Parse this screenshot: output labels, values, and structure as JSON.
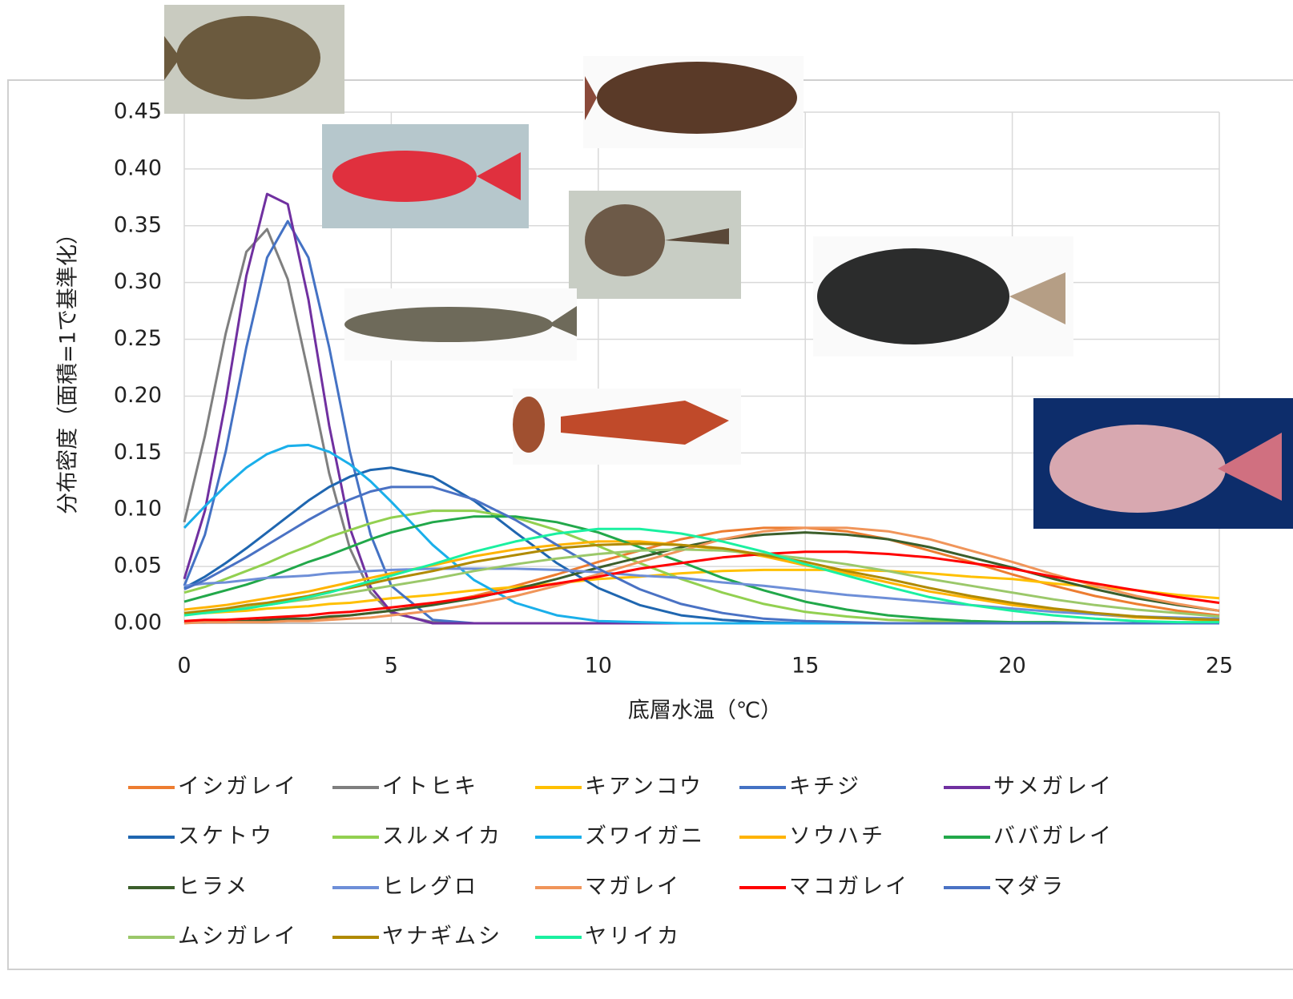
{
  "chart_data": {
    "type": "line",
    "x_label": "底層水温（℃）",
    "y_label": "分布密度（面積=1で基準化）",
    "x": [
      0,
      0.5,
      1,
      1.5,
      2,
      2.5,
      3,
      3.5,
      4,
      4.5,
      5,
      6,
      7,
      8,
      9,
      10,
      11,
      12,
      13,
      14,
      15,
      16,
      17,
      18,
      19,
      20,
      21,
      22,
      23,
      24,
      25
    ],
    "xlim": [
      0,
      25
    ],
    "xticks": [
      0,
      5,
      10,
      15,
      20,
      25
    ],
    "ylim": [
      0,
      0.45
    ],
    "yticks": [
      {
        "value": 0,
        "label": "0.00"
      },
      {
        "value": 0.05,
        "label": "0.05"
      },
      {
        "value": 0.1,
        "label": "0.10"
      },
      {
        "value": 0.15,
        "label": "0.15"
      },
      {
        "value": 0.2,
        "label": "0.20"
      },
      {
        "value": 0.25,
        "label": "0.25"
      },
      {
        "value": 0.3,
        "label": "0.30"
      },
      {
        "value": 0.35,
        "label": "0.35"
      },
      {
        "value": 0.4,
        "label": "0.40"
      },
      {
        "value": 0.45,
        "label": "0.45"
      }
    ],
    "grid": true,
    "legend": "bottom",
    "series": [
      {
        "name": "イシガレイ",
        "color": "#ED7D31",
        "values": [
          0.001,
          0.001,
          0.001,
          0.002,
          0.002,
          0.003,
          0.004,
          0.005,
          0.007,
          0.009,
          0.011,
          0.017,
          0.024,
          0.033,
          0.043,
          0.054,
          0.064,
          0.074,
          0.081,
          0.084,
          0.084,
          0.081,
          0.074,
          0.064,
          0.054,
          0.043,
          0.033,
          0.024,
          0.017,
          0.011,
          0.007
        ]
      },
      {
        "name": "イトヒキ",
        "color": "#7F7F7F",
        "values": [
          0.089,
          0.165,
          0.255,
          0.327,
          0.347,
          0.303,
          0.22,
          0.132,
          0.066,
          0.027,
          0.009,
          0.001,
          0,
          0,
          0,
          0,
          0,
          0,
          0,
          0,
          0,
          0,
          0,
          0,
          0,
          0,
          0,
          0,
          0,
          0,
          0
        ]
      },
      {
        "name": "キアンコウ",
        "color": "#FFC000",
        "values": [
          0.008,
          0.009,
          0.01,
          0.011,
          0.013,
          0.014,
          0.015,
          0.017,
          0.018,
          0.02,
          0.022,
          0.025,
          0.029,
          0.032,
          0.035,
          0.039,
          0.041,
          0.044,
          0.046,
          0.047,
          0.047,
          0.047,
          0.046,
          0.044,
          0.041,
          0.039,
          0.035,
          0.032,
          0.029,
          0.025,
          0.022
        ]
      },
      {
        "name": "キチジ",
        "color": "#4472C4",
        "values": [
          0.033,
          0.078,
          0.151,
          0.243,
          0.322,
          0.354,
          0.322,
          0.243,
          0.151,
          0.078,
          0.033,
          0.003,
          0,
          0,
          0,
          0,
          0,
          0,
          0,
          0,
          0,
          0,
          0,
          0,
          0,
          0,
          0,
          0,
          0,
          0,
          0
        ]
      },
      {
        "name": "サメガレイ",
        "color": "#7030A0",
        "values": [
          0.039,
          0.099,
          0.195,
          0.306,
          0.378,
          0.369,
          0.285,
          0.174,
          0.084,
          0.032,
          0.01,
          0,
          0,
          0,
          0,
          0,
          0,
          0,
          0,
          0,
          0,
          0,
          0,
          0,
          0,
          0,
          0,
          0,
          0,
          0,
          0
        ]
      },
      {
        "name": "スケトウ",
        "color": "#1F66B0",
        "values": [
          0.031,
          0.041,
          0.053,
          0.066,
          0.08,
          0.094,
          0.108,
          0.12,
          0.129,
          0.135,
          0.137,
          0.129,
          0.108,
          0.08,
          0.053,
          0.031,
          0.016,
          0.007,
          0.003,
          0.001,
          0,
          0,
          0,
          0,
          0,
          0,
          0,
          0,
          0,
          0,
          0
        ]
      },
      {
        "name": "スルメイカ",
        "color": "#92D050",
        "values": [
          0.027,
          0.032,
          0.039,
          0.046,
          0.053,
          0.061,
          0.068,
          0.076,
          0.082,
          0.088,
          0.093,
          0.099,
          0.099,
          0.093,
          0.082,
          0.068,
          0.053,
          0.039,
          0.027,
          0.017,
          0.01,
          0.006,
          0.003,
          0.002,
          0.001,
          0,
          0,
          0,
          0,
          0,
          0
        ]
      },
      {
        "name": "ズワイガニ",
        "color": "#1AAFEA",
        "values": [
          0.084,
          0.103,
          0.121,
          0.137,
          0.149,
          0.156,
          0.157,
          0.151,
          0.14,
          0.125,
          0.107,
          0.069,
          0.038,
          0.018,
          0.007,
          0.002,
          0.001,
          0,
          0,
          0,
          0,
          0,
          0,
          0,
          0,
          0,
          0,
          0,
          0,
          0,
          0
        ]
      },
      {
        "name": "ソウハチ",
        "color": "#FFB300",
        "values": [
          0.012,
          0.014,
          0.016,
          0.019,
          0.022,
          0.025,
          0.028,
          0.032,
          0.036,
          0.04,
          0.044,
          0.051,
          0.059,
          0.065,
          0.069,
          0.072,
          0.072,
          0.069,
          0.065,
          0.059,
          0.051,
          0.044,
          0.036,
          0.028,
          0.022,
          0.016,
          0.012,
          0.008,
          0.005,
          0.004,
          0.002
        ]
      },
      {
        "name": "ババガレイ",
        "color": "#22A84A",
        "values": [
          0.019,
          0.024,
          0.029,
          0.034,
          0.04,
          0.047,
          0.054,
          0.06,
          0.067,
          0.074,
          0.08,
          0.089,
          0.094,
          0.094,
          0.089,
          0.08,
          0.067,
          0.054,
          0.04,
          0.029,
          0.019,
          0.012,
          0.007,
          0.004,
          0.002,
          0.001,
          0.001,
          0,
          0,
          0,
          0
        ]
      },
      {
        "name": "ヒラメ",
        "color": "#3B5E2B",
        "values": [
          0.001,
          0.001,
          0.002,
          0.002,
          0.003,
          0.004,
          0.004,
          0.006,
          0.007,
          0.009,
          0.011,
          0.016,
          0.022,
          0.03,
          0.039,
          0.049,
          0.058,
          0.067,
          0.074,
          0.078,
          0.08,
          0.078,
          0.074,
          0.067,
          0.058,
          0.049,
          0.039,
          0.03,
          0.022,
          0.016,
          0.011
        ]
      },
      {
        "name": "ヒレグロ",
        "color": "#6E8FD8",
        "values": [
          0.033,
          0.035,
          0.036,
          0.038,
          0.04,
          0.041,
          0.042,
          0.044,
          0.045,
          0.046,
          0.047,
          0.048,
          0.048,
          0.048,
          0.047,
          0.045,
          0.042,
          0.04,
          0.036,
          0.033,
          0.029,
          0.025,
          0.022,
          0.019,
          0.016,
          0.013,
          0.01,
          0.008,
          0.006,
          0.005,
          0.004
        ]
      },
      {
        "name": "マガレイ",
        "color": "#F0955A",
        "values": [
          0,
          0.001,
          0.001,
          0.001,
          0.001,
          0.002,
          0.002,
          0.003,
          0.004,
          0.005,
          0.007,
          0.011,
          0.017,
          0.024,
          0.033,
          0.043,
          0.054,
          0.064,
          0.074,
          0.081,
          0.084,
          0.084,
          0.081,
          0.074,
          0.064,
          0.054,
          0.043,
          0.033,
          0.024,
          0.017,
          0.011
        ]
      },
      {
        "name": "マコガレイ",
        "color": "#FF0000",
        "values": [
          0.002,
          0.003,
          0.003,
          0.004,
          0.005,
          0.006,
          0.007,
          0.009,
          0.01,
          0.012,
          0.014,
          0.018,
          0.023,
          0.029,
          0.035,
          0.041,
          0.048,
          0.053,
          0.058,
          0.061,
          0.063,
          0.063,
          0.061,
          0.058,
          0.053,
          0.048,
          0.041,
          0.035,
          0.029,
          0.023,
          0.018
        ]
      },
      {
        "name": "マダラ",
        "color": "#4A72C4",
        "values": [
          0.03,
          0.038,
          0.048,
          0.058,
          0.069,
          0.08,
          0.091,
          0.101,
          0.109,
          0.116,
          0.12,
          0.12,
          0.109,
          0.091,
          0.069,
          0.048,
          0.03,
          0.017,
          0.009,
          0.004,
          0.002,
          0.001,
          0,
          0,
          0,
          0,
          0,
          0,
          0,
          0,
          0
        ]
      },
      {
        "name": "ムシガレイ",
        "color": "#9BC86A",
        "values": [
          0.009,
          0.01,
          0.012,
          0.014,
          0.016,
          0.019,
          0.021,
          0.024,
          0.027,
          0.03,
          0.033,
          0.039,
          0.046,
          0.052,
          0.057,
          0.061,
          0.064,
          0.065,
          0.064,
          0.061,
          0.057,
          0.052,
          0.046,
          0.039,
          0.033,
          0.027,
          0.021,
          0.016,
          0.012,
          0.009,
          0.006
        ]
      },
      {
        "name": "ヤナギムシ",
        "color": "#B08A00",
        "values": [
          0.009,
          0.011,
          0.013,
          0.016,
          0.018,
          0.021,
          0.024,
          0.028,
          0.031,
          0.035,
          0.039,
          0.046,
          0.054,
          0.06,
          0.066,
          0.069,
          0.07,
          0.069,
          0.066,
          0.06,
          0.054,
          0.046,
          0.039,
          0.031,
          0.024,
          0.018,
          0.013,
          0.009,
          0.006,
          0.004,
          0.003
        ]
      },
      {
        "name": "ヤリイカ",
        "color": "#1AF0A0",
        "values": [
          0.007,
          0.009,
          0.011,
          0.013,
          0.016,
          0.019,
          0.023,
          0.027,
          0.032,
          0.037,
          0.042,
          0.052,
          0.063,
          0.072,
          0.079,
          0.083,
          0.083,
          0.079,
          0.072,
          0.063,
          0.052,
          0.042,
          0.032,
          0.023,
          0.016,
          0.011,
          0.007,
          0.004,
          0.002,
          0.001,
          0.001
        ]
      }
    ]
  }
}
